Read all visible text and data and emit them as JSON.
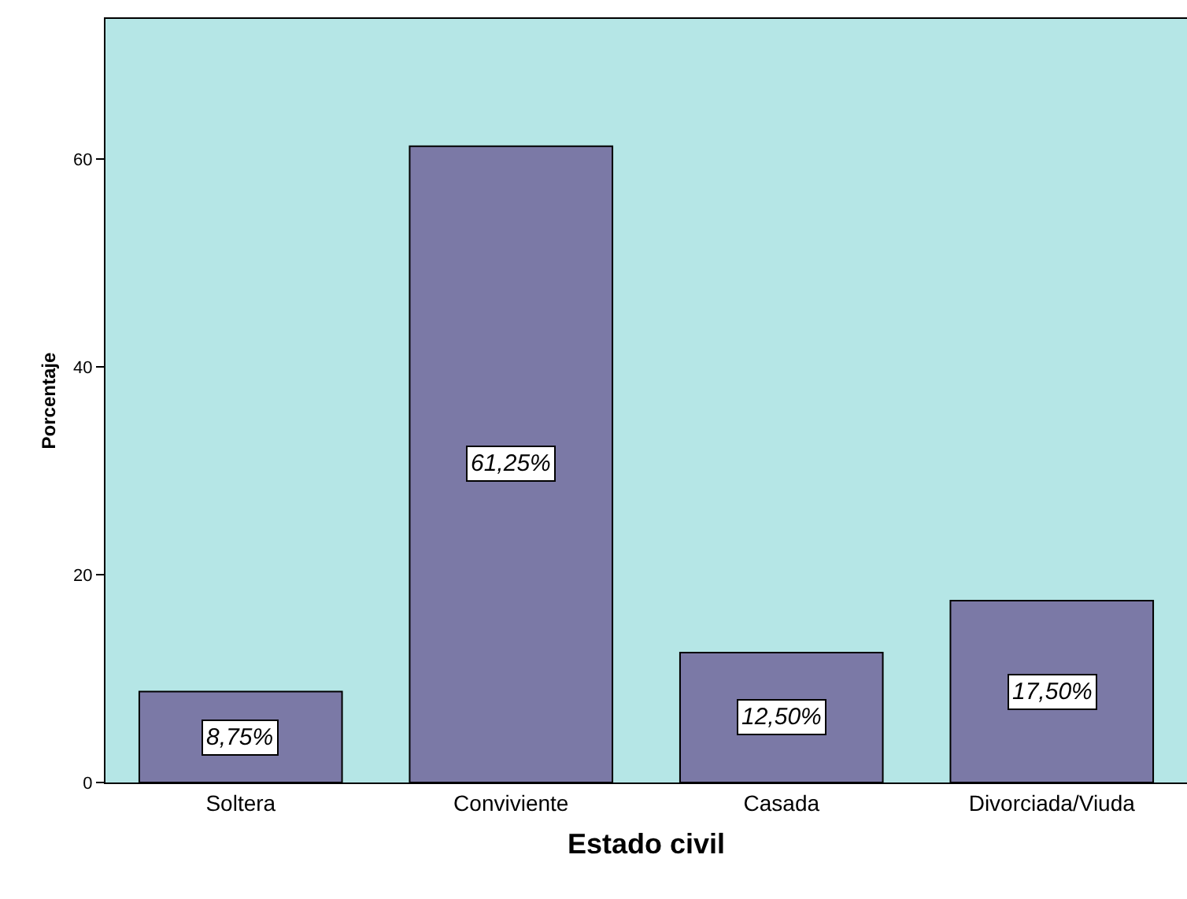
{
  "chart_data": {
    "type": "bar",
    "xlabel": "Estado civil",
    "ylabel": "Porcentaje",
    "categories": [
      "Soltera",
      "Conviviente",
      "Casada",
      "Divorciada/Viuda"
    ],
    "values": [
      8.75,
      61.25,
      12.5,
      17.5
    ],
    "value_labels": [
      "8,75%",
      "61,25%",
      "12,50%",
      "17,50%"
    ],
    "color": "#7b79a6",
    "ylim": [
      0,
      73.5
    ],
    "yticks": [
      0,
      20,
      40,
      60
    ],
    "grid": false
  }
}
